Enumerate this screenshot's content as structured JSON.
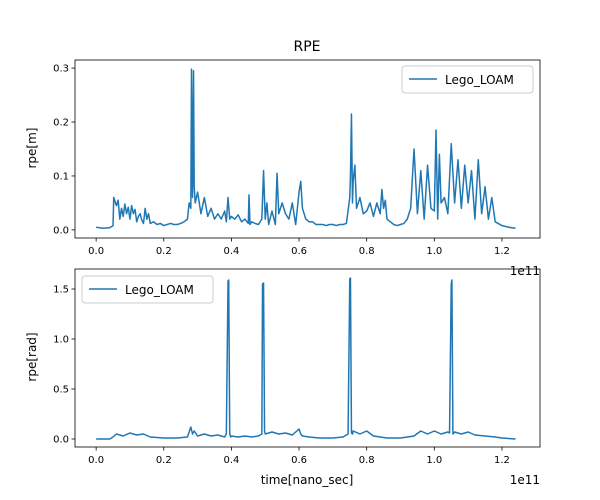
{
  "chart_data": [
    {
      "type": "line",
      "title": "RPE",
      "xlabel": "",
      "ylabel": "rpe[m]",
      "offset_text": "1e11",
      "xlim": [
        -0.0625,
        1.3125
      ],
      "ylim": [
        -0.015,
        0.315
      ],
      "xticks": [
        0.0,
        0.2,
        0.4,
        0.6,
        0.8,
        1.0,
        1.2
      ],
      "xtick_labels": [
        "0.0",
        "0.2",
        "0.4",
        "0.6",
        "0.8",
        "1.0",
        "1.2"
      ],
      "yticks": [
        0.0,
        0.1,
        0.2,
        0.3
      ],
      "ytick_labels": [
        "0.0",
        "0.1",
        "0.2",
        "0.3"
      ],
      "legend": {
        "location": "upper right",
        "entries": [
          "Lego_LOAM"
        ]
      },
      "series": [
        {
          "name": "Lego_LOAM",
          "color": "#1f77b4",
          "x": [
            0.0,
            0.02,
            0.04,
            0.05,
            0.052,
            0.06,
            0.065,
            0.07,
            0.075,
            0.08,
            0.085,
            0.09,
            0.095,
            0.1,
            0.105,
            0.11,
            0.115,
            0.12,
            0.125,
            0.13,
            0.135,
            0.14,
            0.145,
            0.15,
            0.155,
            0.16,
            0.17,
            0.18,
            0.19,
            0.2,
            0.21,
            0.22,
            0.23,
            0.24,
            0.25,
            0.26,
            0.27,
            0.275,
            0.28,
            0.282,
            0.285,
            0.288,
            0.29,
            0.293,
            0.3,
            0.31,
            0.32,
            0.33,
            0.34,
            0.35,
            0.36,
            0.37,
            0.38,
            0.385,
            0.39,
            0.395,
            0.4,
            0.41,
            0.42,
            0.43,
            0.44,
            0.45,
            0.452,
            0.455,
            0.46,
            0.47,
            0.48,
            0.49,
            0.495,
            0.5,
            0.505,
            0.51,
            0.52,
            0.53,
            0.535,
            0.54,
            0.55,
            0.56,
            0.57,
            0.58,
            0.59,
            0.6,
            0.605,
            0.61,
            0.62,
            0.63,
            0.64,
            0.65,
            0.66,
            0.67,
            0.68,
            0.69,
            0.7,
            0.71,
            0.72,
            0.73,
            0.74,
            0.75,
            0.752,
            0.755,
            0.758,
            0.76,
            0.765,
            0.77,
            0.78,
            0.79,
            0.8,
            0.81,
            0.82,
            0.83,
            0.84,
            0.845,
            0.85,
            0.855,
            0.86,
            0.87,
            0.88,
            0.89,
            0.9,
            0.91,
            0.92,
            0.93,
            0.94,
            0.95,
            0.96,
            0.97,
            0.98,
            0.99,
            1.0,
            1.005,
            1.01,
            1.015,
            1.02,
            1.03,
            1.04,
            1.05,
            1.06,
            1.07,
            1.08,
            1.09,
            1.1,
            1.11,
            1.12,
            1.13,
            1.14,
            1.15,
            1.16,
            1.17,
            1.18,
            1.2,
            1.22,
            1.24
          ],
          "y": [
            0.005,
            0.003,
            0.004,
            0.008,
            0.06,
            0.045,
            0.055,
            0.02,
            0.04,
            0.025,
            0.048,
            0.03,
            0.042,
            0.02,
            0.045,
            0.03,
            0.038,
            0.015,
            0.025,
            0.03,
            0.018,
            0.012,
            0.04,
            0.02,
            0.03,
            0.012,
            0.015,
            0.01,
            0.012,
            0.008,
            0.01,
            0.012,
            0.01,
            0.01,
            0.012,
            0.015,
            0.02,
            0.05,
            0.04,
            0.298,
            0.06,
            0.295,
            0.08,
            0.05,
            0.07,
            0.03,
            0.06,
            0.025,
            0.04,
            0.02,
            0.03,
            0.02,
            0.035,
            0.015,
            0.06,
            0.02,
            0.025,
            0.02,
            0.028,
            0.015,
            0.02,
            0.012,
            0.065,
            0.01,
            0.015,
            0.012,
            0.01,
            0.02,
            0.11,
            0.02,
            0.05,
            0.01,
            0.035,
            0.01,
            0.105,
            0.03,
            0.05,
            0.03,
            0.02,
            0.05,
            0.01,
            0.07,
            0.09,
            0.04,
            0.02,
            0.015,
            0.015,
            0.01,
            0.01,
            0.01,
            0.008,
            0.01,
            0.01,
            0.008,
            0.01,
            0.01,
            0.012,
            0.06,
            0.1,
            0.215,
            0.05,
            0.09,
            0.12,
            0.04,
            0.06,
            0.03,
            0.035,
            0.05,
            0.025,
            0.05,
            0.03,
            0.075,
            0.04,
            0.055,
            0.02,
            0.015,
            0.01,
            0.008,
            0.01,
            0.012,
            0.02,
            0.04,
            0.15,
            0.03,
            0.11,
            0.02,
            0.12,
            0.04,
            0.035,
            0.185,
            0.02,
            0.14,
            0.05,
            0.06,
            0.03,
            0.16,
            0.05,
            0.13,
            0.04,
            0.12,
            0.05,
            0.11,
            0.02,
            0.13,
            0.03,
            0.08,
            0.02,
            0.06,
            0.015,
            0.008,
            0.005,
            0.003
          ]
        }
      ]
    },
    {
      "type": "line",
      "title": "",
      "xlabel": "time[nano_sec]",
      "ylabel": "rpe[rad]",
      "offset_text": "1e11",
      "xlim": [
        -0.0625,
        1.3125
      ],
      "ylim": [
        -0.08,
        1.7
      ],
      "xticks": [
        0.0,
        0.2,
        0.4,
        0.6,
        0.8,
        1.0,
        1.2
      ],
      "xtick_labels": [
        "0.0",
        "0.2",
        "0.4",
        "0.6",
        "0.8",
        "1.0",
        "1.2"
      ],
      "yticks": [
        0.0,
        0.5,
        1.0,
        1.5
      ],
      "ytick_labels": [
        "0.0",
        "0.5",
        "1.0",
        "1.5"
      ],
      "legend": {
        "location": "upper left",
        "entries": [
          "Lego_LOAM"
        ]
      },
      "series": [
        {
          "name": "Lego_LOAM",
          "color": "#1f77b4",
          "x": [
            0.0,
            0.04,
            0.05,
            0.06,
            0.08,
            0.1,
            0.12,
            0.14,
            0.16,
            0.2,
            0.24,
            0.27,
            0.28,
            0.285,
            0.29,
            0.3,
            0.32,
            0.34,
            0.36,
            0.38,
            0.385,
            0.39,
            0.392,
            0.395,
            0.398,
            0.4,
            0.42,
            0.44,
            0.46,
            0.48,
            0.49,
            0.492,
            0.495,
            0.498,
            0.5,
            0.52,
            0.54,
            0.56,
            0.58,
            0.6,
            0.605,
            0.61,
            0.63,
            0.66,
            0.7,
            0.73,
            0.745,
            0.75,
            0.752,
            0.755,
            0.758,
            0.76,
            0.78,
            0.8,
            0.82,
            0.84,
            0.86,
            0.9,
            0.94,
            0.96,
            0.98,
            1.0,
            1.02,
            1.04,
            1.045,
            1.05,
            1.052,
            1.055,
            1.058,
            1.06,
            1.08,
            1.1,
            1.12,
            1.15,
            1.18,
            1.2,
            1.24
          ],
          "y": [
            0.0,
            0.0,
            0.02,
            0.05,
            0.03,
            0.06,
            0.04,
            0.05,
            0.02,
            0.01,
            0.01,
            0.02,
            0.12,
            0.05,
            0.08,
            0.03,
            0.05,
            0.03,
            0.04,
            0.02,
            0.05,
            1.58,
            1.59,
            0.05,
            0.02,
            0.03,
            0.02,
            0.03,
            0.02,
            0.03,
            0.05,
            1.55,
            1.56,
            0.08,
            0.05,
            0.07,
            0.05,
            0.06,
            0.04,
            0.1,
            0.05,
            0.03,
            0.02,
            0.01,
            0.01,
            0.02,
            0.05,
            1.6,
            1.61,
            0.06,
            0.05,
            0.08,
            0.05,
            0.08,
            0.03,
            0.02,
            0.01,
            0.01,
            0.03,
            0.08,
            0.05,
            0.08,
            0.05,
            0.07,
            0.06,
            1.55,
            1.59,
            0.05,
            0.06,
            0.07,
            0.05,
            0.07,
            0.04,
            0.03,
            0.02,
            0.01,
            0.0
          ]
        }
      ]
    }
  ]
}
